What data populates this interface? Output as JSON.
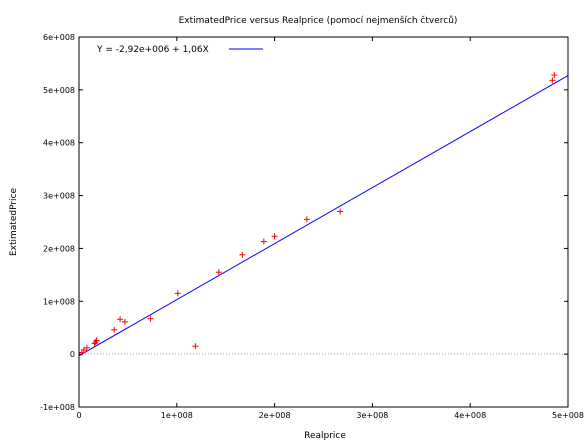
{
  "chart_data": {
    "type": "scatter",
    "title": "ExtimatedPrice versus Realprice (pomocí nejmenších čtverců)",
    "xlabel": "Realprice",
    "ylabel": "ExtimatedPrice",
    "xlim": [
      0,
      500000000
    ],
    "ylim": [
      -100000000,
      600000000
    ],
    "x_ticks": [
      {
        "value": 0,
        "label": "0"
      },
      {
        "value": 100000000,
        "label": "1e+008"
      },
      {
        "value": 200000000,
        "label": "2e+008"
      },
      {
        "value": 300000000,
        "label": "3e+008"
      },
      {
        "value": 400000000,
        "label": "4e+008"
      },
      {
        "value": 500000000,
        "label": "5e+008"
      }
    ],
    "y_ticks": [
      {
        "value": -100000000,
        "label": "-1e+008"
      },
      {
        "value": 0,
        "label": "0"
      },
      {
        "value": 100000000,
        "label": "1e+008"
      },
      {
        "value": 200000000,
        "label": "2e+008"
      },
      {
        "value": 300000000,
        "label": "3e+008"
      },
      {
        "value": 400000000,
        "label": "4e+008"
      },
      {
        "value": 500000000,
        "label": "5e+008"
      },
      {
        "value": 600000000,
        "label": "6e+008"
      }
    ],
    "grid": false,
    "zero_line": true,
    "legend_position": "top-left",
    "series": [
      {
        "marker": "+",
        "color": "#ff0000",
        "points": [
          {
            "x": 3000000,
            "y": 3000000
          },
          {
            "x": 5000000,
            "y": 8000000
          },
          {
            "x": 8000000,
            "y": 12000000
          },
          {
            "x": 16000000,
            "y": 20000000
          },
          {
            "x": 17000000,
            "y": 23000000
          },
          {
            "x": 18000000,
            "y": 26000000
          },
          {
            "x": 36000000,
            "y": 46000000
          },
          {
            "x": 42000000,
            "y": 66000000
          },
          {
            "x": 47000000,
            "y": 61000000
          },
          {
            "x": 73000000,
            "y": 67000000
          },
          {
            "x": 101000000,
            "y": 115000000
          },
          {
            "x": 119000000,
            "y": 15000000
          },
          {
            "x": 143000000,
            "y": 155000000
          },
          {
            "x": 167000000,
            "y": 188000000
          },
          {
            "x": 189000000,
            "y": 213000000
          },
          {
            "x": 200000000,
            "y": 223000000
          },
          {
            "x": 233000000,
            "y": 255000000
          },
          {
            "x": 267000000,
            "y": 270000000
          },
          {
            "x": 484000000,
            "y": 518000000
          },
          {
            "x": 486000000,
            "y": 528000000
          }
        ]
      },
      {
        "name": "Y = -2,92e+006 + 1,06X",
        "type": "line",
        "color": "#0000ff",
        "intercept": -2920000,
        "slope": 1.06
      }
    ]
  }
}
